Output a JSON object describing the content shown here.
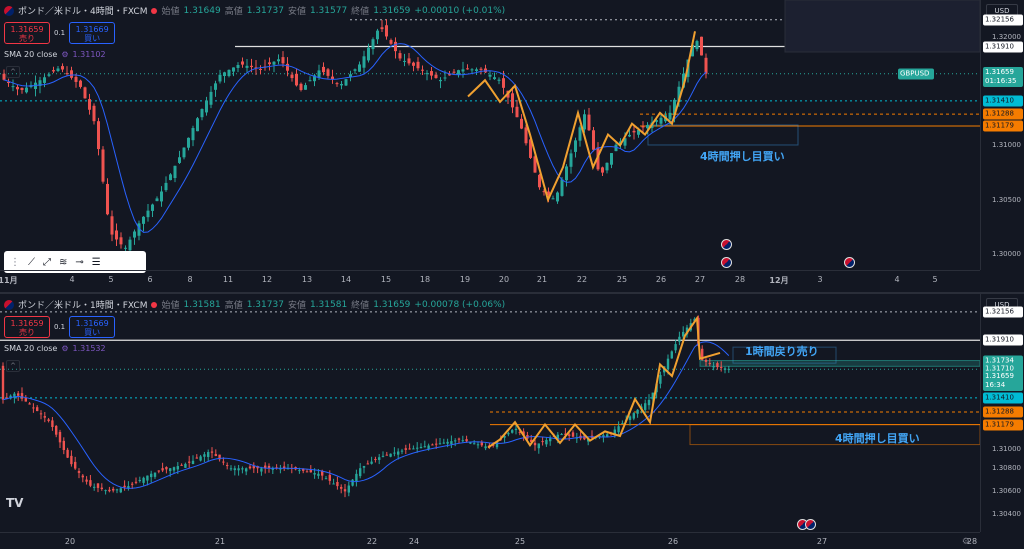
{
  "top_pane": {
    "symbol_title": "ポンド／米ドル・4時間・FXCM",
    "ohlc": {
      "o_label": "始値",
      "o": "1.31649",
      "h_label": "高値",
      "h": "1.31737",
      "l_label": "安値",
      "l": "1.31577",
      "c_label": "終値",
      "c": "1.31659",
      "chg": "+0.00010 (+0.01%)"
    },
    "sell": {
      "price": "1.31659",
      "label": "売り"
    },
    "buy": {
      "price": "1.31669",
      "label": "買い"
    },
    "spread": "0.1",
    "sma_label": "SMA 20 close",
    "sma_value": "1.31102",
    "currency": "USD",
    "ticker_badge": "GBPUSD",
    "price_labels": [
      "1.32156",
      "1.32000",
      "1.31910",
      "1.31659",
      "01:16:35",
      "1.31410",
      "1.31288",
      "1.31179",
      "1.31000",
      "1.30500",
      "1.30000"
    ],
    "time_labels": [
      "11月",
      "4",
      "5",
      "6",
      "8",
      "11",
      "12",
      "13",
      "14",
      "15",
      "18",
      "19",
      "20",
      "21",
      "22",
      "25",
      "26",
      "27",
      "28",
      "12月",
      "3",
      "4",
      "5"
    ],
    "annotation": "4時間押し目買い",
    "drawing_tools": [
      "trend-line-icon",
      "ray-icon",
      "fib-icon",
      "horizontal-line-icon",
      "parallel-channel-icon"
    ]
  },
  "bottom_pane": {
    "symbol_title": "ポンド／米ドル・1時間・FXCM",
    "ohlc": {
      "o_label": "始値",
      "o": "1.31581",
      "h_label": "高値",
      "h": "1.31737",
      "l_label": "安値",
      "l": "1.31581",
      "c_label": "終値",
      "c": "1.31659",
      "chg": "+0.00078 (+0.06%)"
    },
    "sell": {
      "price": "1.31659",
      "label": "売り"
    },
    "buy": {
      "price": "1.31669",
      "label": "買い"
    },
    "spread": "0.1",
    "sma_label": "SMA 20 close",
    "sma_value": "1.31532",
    "currency": "USD",
    "price_labels": [
      "1.32156",
      "1.31910",
      "1.31734",
      "1.31710",
      "1.31659",
      "16:34",
      "1.31410",
      "1.31288",
      "1.31179",
      "1.31000",
      "1.30800",
      "1.30600",
      "1.30400"
    ],
    "time_labels": [
      "20",
      "21",
      "22",
      "24",
      "25",
      "26",
      "27",
      "28"
    ],
    "annotation_sell": "1時間戻り売り",
    "annotation_buy": "4時間押し目買い",
    "logo": "TV"
  },
  "colors": {
    "bg": "#131722",
    "up": "#26a69a",
    "down": "#ef5350",
    "sma": "#2962ff",
    "zigzag": "#f0a030",
    "annot": "#42a5f5",
    "orange": "#f57c00",
    "cyan": "#00bcd4"
  }
}
